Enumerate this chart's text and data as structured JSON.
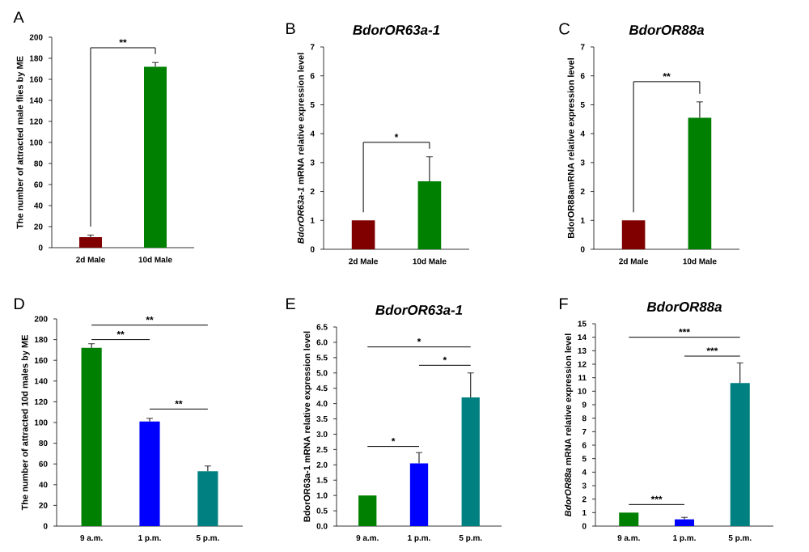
{
  "chart_data": [
    {
      "type": "bar",
      "ylabel": "The number of attracted male flies by ME",
      "categories": [
        "2d Male",
        "10d Male"
      ],
      "values": [
        10,
        172
      ],
      "errors": [
        2,
        4
      ],
      "colors": [
        "#800000",
        "#008000"
      ],
      "ylim": [
        0,
        200
      ],
      "yticks": [
        0,
        20,
        40,
        60,
        80,
        100,
        120,
        140,
        160,
        180,
        200
      ],
      "annotations": [
        "A",
        "**"
      ]
    },
    {
      "type": "bar",
      "title": "BdorOR63a-1",
      "ylabel": "*BdorOR63a-1* mRNA relative expression level",
      "categories": [
        "2d Male",
        "10d Male"
      ],
      "values": [
        1,
        2.35
      ],
      "errors": [
        null,
        0.85
      ],
      "colors": [
        "#800000",
        "#008000"
      ],
      "ylim": [
        0,
        7
      ],
      "yticks": [
        0,
        1,
        2,
        3,
        4,
        5,
        6,
        7
      ],
      "annotations": [
        "B",
        "*"
      ]
    },
    {
      "type": "bar",
      "title": "BdorOR88a",
      "ylabel": "BdorOR88amRNA relative expression level",
      "categories": [
        "2d Male",
        "10d Male"
      ],
      "values": [
        1,
        4.55
      ],
      "errors": [
        null,
        0.55
      ],
      "colors": [
        "#800000",
        "#008000"
      ],
      "ylim": [
        0,
        7
      ],
      "yticks": [
        0,
        1,
        2,
        3,
        4,
        5,
        6,
        7
      ],
      "annotations": [
        "C",
        "**"
      ]
    },
    {
      "type": "bar",
      "ylabel": "The number of attracted 10d males by ME",
      "categories": [
        "9 a.m.",
        "1 p.m.",
        "5 p.m."
      ],
      "values": [
        172,
        101,
        53
      ],
      "errors": [
        4,
        3,
        5
      ],
      "colors": [
        "#008000",
        "#0000ff",
        "#008080"
      ],
      "ylim": [
        0,
        200
      ],
      "yticks": [
        0,
        20,
        40,
        60,
        80,
        100,
        120,
        140,
        160,
        180,
        200
      ],
      "annotations": [
        "D",
        "**",
        "**",
        "**"
      ]
    },
    {
      "type": "bar",
      "title": "BdorOR63a-1",
      "ylabel": "BdorOR63a-1 mRNA relative expression level",
      "categories": [
        "9 a.m.",
        "1 p.m.",
        "5 p.m."
      ],
      "values": [
        1,
        2.05,
        4.2
      ],
      "errors": [
        null,
        0.35,
        0.8
      ],
      "colors": [
        "#008000",
        "#0000ff",
        "#008080"
      ],
      "ylim": [
        0,
        6.5
      ],
      "yticks": [
        {
          "value": 0,
          "label": "0.0"
        },
        0.5,
        {
          "value": 1,
          "label": "1.0"
        },
        1.5,
        {
          "value": 2,
          "label": "2.0"
        },
        2.5,
        {
          "value": 3,
          "label": "3.0"
        },
        3.5,
        {
          "value": 4,
          "label": "4.0"
        },
        4.5,
        {
          "value": 5,
          "label": "5.0"
        },
        5.5,
        {
          "value": 6,
          "label": "6.0"
        },
        6.5
      ],
      "annotations": [
        "E",
        "*",
        "*",
        "*"
      ]
    },
    {
      "type": "bar",
      "title": "BdorOR88a",
      "ylabel": "*BdorOR88a* mRNA relative expression level",
      "categories": [
        "9 a.m.",
        "1 p.m.",
        "5 p.m."
      ],
      "values": [
        1,
        0.5,
        10.6
      ],
      "errors": [
        null,
        0.15,
        1.5
      ],
      "colors": [
        "#008000",
        "#0000ff",
        "#008080"
      ],
      "ylim": [
        0,
        15
      ],
      "yticks": [
        0,
        1,
        2,
        3,
        4,
        5,
        6,
        7,
        8,
        9,
        10,
        11,
        12,
        13,
        14,
        15
      ],
      "annotations": [
        "F",
        "***",
        "***",
        "***"
      ]
    }
  ]
}
